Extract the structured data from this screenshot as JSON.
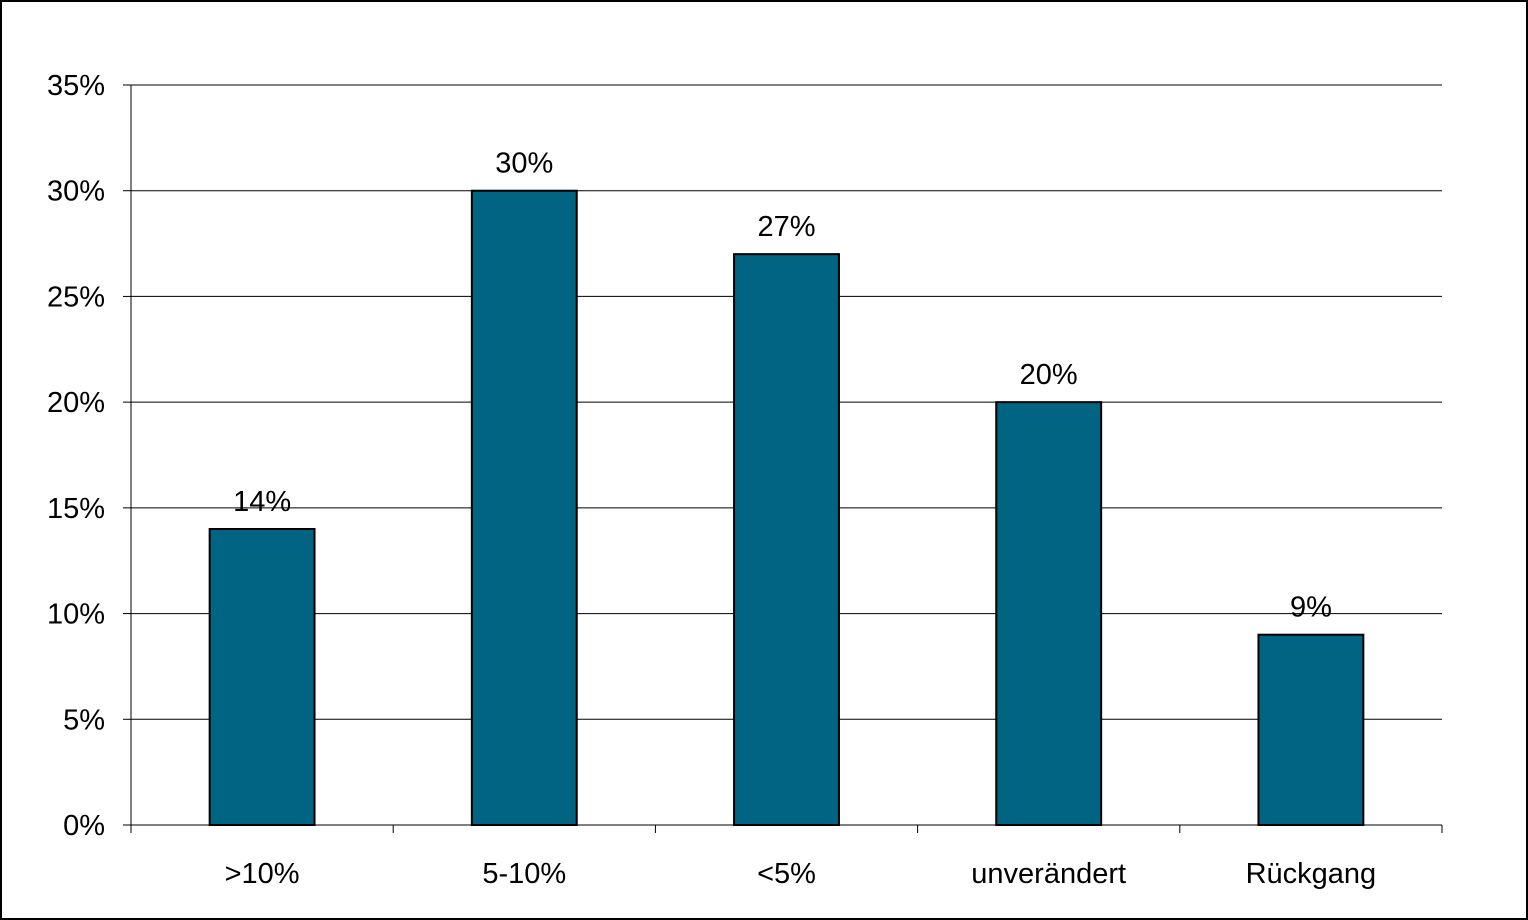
{
  "chart_data": {
    "type": "bar",
    "title": "",
    "xlabel": "",
    "ylabel": "",
    "categories": [
      ">10%",
      "5-10%",
      "<5%",
      "unverändert",
      "Rückgang"
    ],
    "values": [
      14,
      30,
      27,
      20,
      9
    ],
    "data_labels": [
      "14%",
      "30%",
      "27%",
      "20%",
      "9%"
    ],
    "ylim": [
      0,
      35
    ],
    "y_ticks": [
      0,
      5,
      10,
      15,
      20,
      25,
      30,
      35
    ],
    "y_tick_labels": [
      "0%",
      "5%",
      "10%",
      "15%",
      "20%",
      "25%",
      "30%",
      "35%"
    ],
    "grid": true,
    "legend": "none",
    "bar_color": "#006482",
    "bar_outline_color": "#000000",
    "gridline_color": "#000000",
    "frame_color": "#000000"
  }
}
